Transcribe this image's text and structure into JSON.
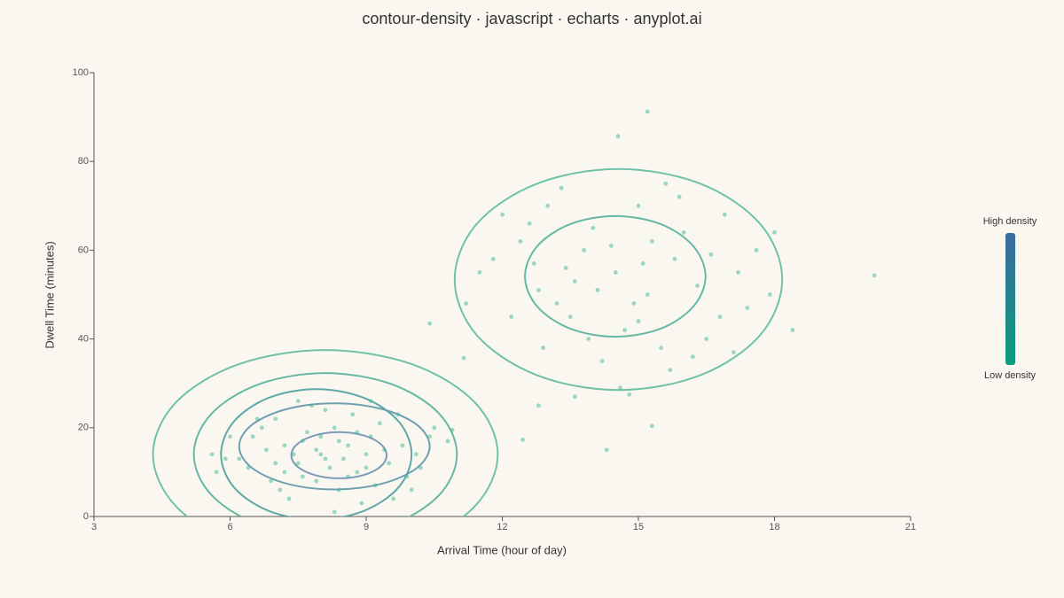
{
  "chart_data": {
    "type": "contour-density",
    "title": "contour-density · javascript · echarts · anyplot.ai",
    "x_label": "Arrival Time (hour of day)",
    "y_label": "Dwell Time (minutes)",
    "xlim": [
      3,
      21
    ],
    "ylim": [
      0,
      100
    ],
    "xticks": [
      3,
      6,
      9,
      12,
      15,
      18,
      21
    ],
    "yticks": [
      0,
      20,
      40,
      60,
      80,
      100
    ],
    "points": {
      "color": "#3fb58e",
      "x": [
        8.0,
        7.5,
        8.6,
        9.1,
        7.2,
        6.8,
        8.3,
        9.5,
        7.9,
        8.8,
        6.5,
        7.0,
        9.8,
        10.1,
        8.1,
        7.6,
        8.4,
        9.3,
        6.2,
        7.3,
        8.9,
        9.9,
        10.4,
        6.9,
        7.7,
        8.2,
        9.0,
        8.5,
        7.4,
        8.0,
        7.8,
        8.7,
        9.6,
        6.4,
        5.7,
        5.9,
        10.8,
        10.5,
        6.6,
        7.1,
        8.3,
        9.2,
        8.6,
        7.9,
        8.1,
        9.4,
        6.7,
        7.5,
        9.7,
        10.2,
        7.2,
        8.8,
        6.0,
        9.0,
        8.4,
        7.6,
        10.0,
        5.6,
        9.1,
        7.0,
        14.5,
        13.8,
        15.2,
        15.8,
        13.2,
        14.0,
        16.3,
        12.7,
        15.0,
        13.5,
        14.7,
        16.0,
        12.4,
        17.2,
        11.8,
        15.5,
        14.2,
        16.8,
        13.0,
        17.6,
        12.2,
        15.9,
        14.9,
        13.6,
        15.3,
        16.5,
        12.9,
        17.9,
        13.3,
        15.7,
        11.5,
        18.4,
        16.9,
        14.4,
        15.1,
        12.6,
        17.4,
        13.9,
        16.2,
        14.1,
        12.0,
        15.6,
        17.1,
        14.6,
        18.0,
        11.2,
        13.4,
        16.6,
        15.0,
        12.8,
        20.2,
        15.2,
        14.55,
        10.4,
        11.15,
        15.3,
        14.3,
        12.8,
        12.45,
        13.6,
        10.9,
        14.8
      ],
      "y": [
        14,
        12,
        16,
        18,
        10,
        15,
        20,
        12,
        8,
        10,
        18,
        22,
        16,
        14,
        24,
        17,
        6,
        21,
        13,
        4,
        3,
        9,
        18,
        8,
        19,
        11,
        14,
        13,
        14,
        18,
        25,
        23,
        4,
        11,
        10,
        13,
        17,
        20,
        22,
        6,
        1,
        7,
        9,
        15,
        13,
        15,
        20,
        26,
        23,
        11,
        16,
        19,
        18,
        11,
        17,
        9,
        6,
        14,
        26,
        12,
        55,
        60,
        50,
        58,
        48,
        65,
        52,
        57,
        70,
        45,
        42,
        64,
        62,
        55,
        58,
        38,
        35,
        45,
        70,
        60,
        45,
        72,
        48,
        53,
        62,
        40,
        38,
        50,
        74,
        33,
        55,
        42,
        68,
        61,
        57,
        66,
        47,
        40,
        36,
        51,
        68,
        75,
        37,
        29,
        64,
        48,
        56,
        59,
        44,
        51,
        54.3,
        91.2,
        85.7,
        43.5,
        35.7,
        20.4,
        15,
        25,
        17.3,
        27,
        19.5,
        27.5
      ]
    },
    "contours": [
      {
        "color": "#6fc2a8",
        "x": [
          11.9,
          11.39,
          10.0,
          8.1,
          6.2,
          4.81,
          4.3,
          4.81,
          6.2,
          8.1,
          10.0,
          11.39
        ],
        "y": [
          14,
          25.75,
          34.35,
          37.5,
          34.35,
          25.75,
          14,
          2.25,
          -6.35,
          -9.5,
          -6.35,
          2.25
        ]
      },
      {
        "color": "#66b8a6",
        "x": [
          11.0,
          10.61,
          9.55,
          8.1,
          6.65,
          5.59,
          5.2,
          5.59,
          6.65,
          8.1,
          9.55,
          10.61
        ],
        "y": [
          14,
          23.15,
          29.85,
          32.3,
          29.85,
          23.15,
          14,
          4.85,
          -1.85,
          -4.3,
          -1.85,
          4.85
        ]
      },
      {
        "color": "#5fa8a8",
        "x": [
          10.0,
          9.72,
          8.95,
          7.9,
          6.85,
          6.08,
          5.8,
          6.08,
          6.85,
          7.9,
          8.95,
          9.72
        ],
        "y": [
          14,
          21.35,
          26.73,
          28.7,
          26.73,
          21.35,
          14,
          6.65,
          1.27,
          -0.7,
          1.27,
          6.65
        ]
      },
      {
        "color": "#6f9fb0",
        "x": [
          10.4,
          10.12,
          9.35,
          8.3,
          7.25,
          6.48,
          6.2,
          6.48,
          7.25,
          8.3,
          9.35,
          10.12
        ],
        "y": [
          15.8,
          20.65,
          24.2,
          25.5,
          24.2,
          20.65,
          15.8,
          10.95,
          7.4,
          6.1,
          7.4,
          10.95
        ]
      },
      {
        "color": "#7b9bb8",
        "x": [
          9.45,
          9.31,
          8.93,
          8.4,
          7.88,
          7.49,
          7.35,
          7.49,
          7.88,
          8.4,
          8.93,
          9.31
        ],
        "y": [
          13.8,
          16.4,
          18.3,
          19.0,
          18.3,
          16.4,
          13.8,
          11.2,
          9.3,
          8.6,
          9.3,
          11.2
        ]
      },
      {
        "color": "#6fc2a8",
        "x": [
          18.17,
          17.69,
          16.37,
          14.56,
          12.76,
          11.43,
          10.95,
          11.43,
          12.76,
          14.56,
          16.37,
          17.69
        ],
        "y": [
          53.4,
          65.85,
          74.96,
          78.3,
          74.96,
          65.85,
          53.4,
          40.95,
          31.84,
          28.5,
          31.84,
          40.95
        ]
      },
      {
        "color": "#66b8a6",
        "x": [
          16.48,
          16.21,
          15.49,
          14.49,
          13.5,
          12.77,
          12.5,
          12.77,
          13.5,
          14.49,
          15.49,
          16.21
        ],
        "y": [
          54.1,
          60.9,
          65.88,
          67.7,
          65.88,
          60.9,
          54.1,
          47.3,
          42.32,
          40.5,
          42.32,
          47.3
        ]
      }
    ],
    "visual_map": {
      "high_label": "High density",
      "low_label": "Low density",
      "high_color": "#3b6aa0",
      "low_color": "#0a9e7c"
    }
  }
}
